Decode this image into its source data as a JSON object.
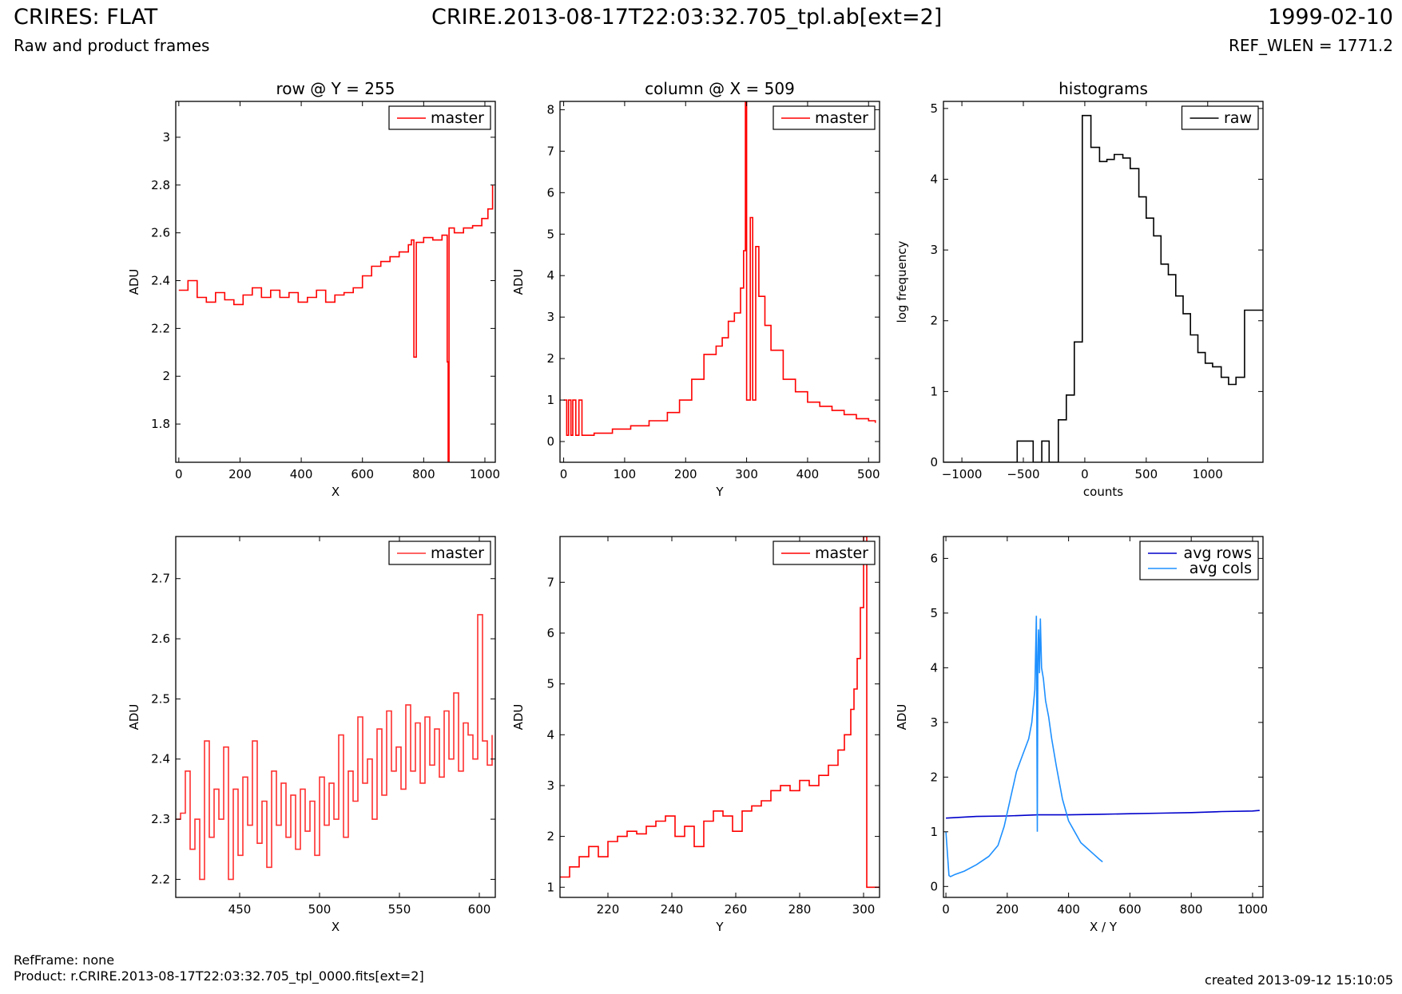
{
  "header": {
    "title": "CRIRES: FLAT",
    "subtitle": "Raw and product frames",
    "file": "CRIRE.2013-08-17T22:03:32.705_tpl.ab[ext=2]",
    "date": "1999-02-10",
    "ref_wlen": "REF_WLEN = 1771.2"
  },
  "footer": {
    "refframe": "RefFrame: none",
    "product": "Product: r.CRIRE.2013-08-17T22:03:32.705_tpl_0000.fits[ext=2]",
    "created": "created 2013-09-12 15:10:05"
  },
  "colors": {
    "master": "#ff0000",
    "raw": "#000000",
    "avg_rows": "#0000cc",
    "avg_cols": "#1e90ff"
  },
  "chart_data": [
    {
      "type": "line",
      "title": "row @ Y = 255",
      "xlabel": "X",
      "ylabel": "ADU",
      "xlim": [
        -10,
        1034
      ],
      "ylim": [
        1.64,
        3.15
      ],
      "xticks": [
        0,
        200,
        400,
        600,
        800,
        1000
      ],
      "yticks": [
        1.8,
        2.0,
        2.2,
        2.4,
        2.6,
        2.8,
        3.0
      ],
      "legend": "top-right",
      "series": [
        {
          "name": "master",
          "color": "#ff0000",
          "step": true,
          "x": [
            0,
            30,
            60,
            90,
            120,
            150,
            180,
            210,
            240,
            270,
            300,
            330,
            360,
            390,
            420,
            450,
            480,
            510,
            540,
            570,
            600,
            630,
            660,
            690,
            720,
            750,
            760,
            768,
            776,
            800,
            830,
            860,
            877,
            880,
            883,
            900,
            930,
            960,
            990,
            1010,
            1025
          ],
          "y": [
            2.36,
            2.4,
            2.33,
            2.31,
            2.35,
            2.32,
            2.3,
            2.34,
            2.37,
            2.33,
            2.36,
            2.33,
            2.35,
            2.31,
            2.33,
            2.36,
            2.31,
            2.34,
            2.35,
            2.37,
            2.42,
            2.46,
            2.48,
            2.5,
            2.52,
            2.55,
            2.57,
            2.08,
            2.56,
            2.58,
            2.57,
            2.59,
            2.06,
            1.64,
            2.62,
            2.6,
            2.62,
            2.63,
            2.66,
            2.7,
            2.8
          ]
        }
      ]
    },
    {
      "type": "line",
      "title": "column @ X = 509",
      "xlabel": "Y",
      "ylabel": "ADU",
      "xlim": [
        -6,
        518
      ],
      "ylim": [
        -0.5,
        8.2
      ],
      "xticks": [
        0,
        100,
        200,
        300,
        400,
        500
      ],
      "yticks": [
        0,
        1,
        2,
        3,
        4,
        5,
        6,
        7,
        8
      ],
      "legend": "top-right",
      "series": [
        {
          "name": "master",
          "color": "#ff0000",
          "step": true,
          "x": [
            0,
            5,
            8,
            12,
            15,
            20,
            25,
            30,
            50,
            80,
            110,
            140,
            170,
            190,
            210,
            230,
            250,
            260,
            270,
            280,
            290,
            295,
            298,
            300,
            302,
            306,
            310,
            315,
            320,
            330,
            340,
            360,
            380,
            400,
            420,
            440,
            460,
            480,
            500,
            511
          ],
          "y": [
            1.0,
            0.15,
            1.0,
            0.15,
            1.0,
            0.15,
            1.0,
            0.15,
            0.2,
            0.3,
            0.38,
            0.5,
            0.7,
            1.0,
            1.5,
            2.1,
            2.3,
            2.5,
            2.9,
            3.1,
            3.7,
            4.6,
            8.2,
            1.0,
            1.0,
            5.4,
            1.0,
            4.7,
            3.5,
            2.8,
            2.2,
            1.5,
            1.2,
            0.95,
            0.85,
            0.75,
            0.65,
            0.55,
            0.5,
            0.45
          ]
        }
      ]
    },
    {
      "type": "line",
      "title": "histograms",
      "xlabel": "counts",
      "ylabel": "log frequency",
      "xlim": [
        -1150,
        1450
      ],
      "ylim": [
        0,
        5.1
      ],
      "xticks": [
        -1000,
        -500,
        0,
        500,
        1000
      ],
      "yticks": [
        0,
        1,
        2,
        3,
        4,
        5
      ],
      "legend": "top-right",
      "series": [
        {
          "name": "raw",
          "color": "#000000",
          "step": true,
          "x": [
            -1150,
            -550,
            -420,
            -350,
            -290,
            -215,
            -150,
            -85,
            -20,
            50,
            120,
            180,
            240,
            310,
            370,
            440,
            500,
            560,
            620,
            680,
            740,
            800,
            860,
            920,
            980,
            1040,
            1110,
            1170,
            1230,
            1300,
            1360,
            1420,
            1450
          ],
          "y": [
            0,
            0.3,
            0,
            0.3,
            0,
            0.6,
            0.95,
            1.7,
            4.9,
            4.45,
            4.25,
            4.28,
            4.35,
            4.3,
            4.15,
            3.75,
            3.45,
            3.2,
            2.8,
            2.65,
            2.35,
            2.1,
            1.8,
            1.55,
            1.4,
            1.35,
            1.2,
            1.1,
            1.2,
            2.15,
            2.15,
            2.15,
            2.15
          ]
        }
      ]
    },
    {
      "type": "line",
      "title": "",
      "xlabel": "X",
      "ylabel": "ADU",
      "xlim": [
        410,
        610
      ],
      "ylim": [
        2.17,
        2.77
      ],
      "xticks": [
        450,
        500,
        550,
        600
      ],
      "yticks": [
        2.2,
        2.3,
        2.4,
        2.5,
        2.6,
        2.7
      ],
      "legend": "top-right",
      "series": [
        {
          "name": "master",
          "color": "#ff3030",
          "step": true,
          "x": [
            410,
            413,
            416,
            419,
            422,
            425,
            428,
            431,
            434,
            437,
            440,
            443,
            446,
            449,
            452,
            455,
            458,
            461,
            464,
            467,
            470,
            473,
            476,
            479,
            482,
            485,
            488,
            491,
            494,
            497,
            500,
            503,
            506,
            509,
            512,
            515,
            518,
            521,
            524,
            527,
            530,
            533,
            536,
            539,
            542,
            545,
            548,
            551,
            554,
            557,
            560,
            563,
            566,
            569,
            572,
            575,
            578,
            581,
            584,
            587,
            590,
            593,
            596,
            599,
            602,
            605,
            608
          ],
          "y": [
            2.3,
            2.31,
            2.38,
            2.25,
            2.3,
            2.2,
            2.43,
            2.27,
            2.35,
            2.3,
            2.42,
            2.2,
            2.35,
            2.24,
            2.37,
            2.29,
            2.43,
            2.26,
            2.33,
            2.22,
            2.38,
            2.29,
            2.36,
            2.27,
            2.34,
            2.25,
            2.35,
            2.28,
            2.33,
            2.24,
            2.37,
            2.29,
            2.36,
            2.3,
            2.44,
            2.27,
            2.38,
            2.33,
            2.47,
            2.36,
            2.4,
            2.3,
            2.45,
            2.34,
            2.48,
            2.38,
            2.42,
            2.35,
            2.49,
            2.38,
            2.46,
            2.36,
            2.47,
            2.39,
            2.45,
            2.37,
            2.48,
            2.4,
            2.51,
            2.38,
            2.46,
            2.44,
            2.4,
            2.64,
            2.43,
            2.39,
            2.44
          ]
        }
      ]
    },
    {
      "type": "line",
      "title": "",
      "xlabel": "Y",
      "ylabel": "ADU",
      "xlim": [
        205,
        305
      ],
      "ylim": [
        0.8,
        7.9
      ],
      "xticks": [
        220,
        240,
        260,
        280,
        300
      ],
      "yticks": [
        1,
        2,
        3,
        4,
        5,
        6,
        7
      ],
      "legend": "top-right",
      "series": [
        {
          "name": "master",
          "color": "#ff0000",
          "step": true,
          "x": [
            205,
            208,
            211,
            214,
            217,
            220,
            223,
            226,
            229,
            232,
            235,
            238,
            241,
            244,
            247,
            250,
            253,
            256,
            259,
            262,
            265,
            268,
            271,
            274,
            277,
            280,
            283,
            286,
            289,
            292,
            294,
            296,
            297,
            298,
            299,
            300,
            301,
            305
          ],
          "y": [
            1.2,
            1.4,
            1.6,
            1.8,
            1.6,
            1.9,
            2.0,
            2.1,
            2.05,
            2.2,
            2.3,
            2.4,
            2.0,
            2.2,
            1.8,
            2.3,
            2.5,
            2.4,
            2.1,
            2.5,
            2.6,
            2.7,
            2.9,
            3.0,
            2.9,
            3.1,
            3.0,
            3.2,
            3.4,
            3.7,
            4.0,
            4.5,
            4.9,
            5.5,
            6.5,
            7.9,
            1.0,
            1.0
          ]
        }
      ]
    },
    {
      "type": "line",
      "title": "",
      "xlabel": "X / Y",
      "ylabel": "ADU",
      "xlim": [
        -8,
        1034
      ],
      "ylim": [
        -0.2,
        6.4
      ],
      "xticks": [
        0,
        200,
        400,
        600,
        800,
        1000
      ],
      "yticks": [
        0,
        1,
        2,
        3,
        4,
        5,
        6
      ],
      "legend": "top-right",
      "series": [
        {
          "name": "avg rows",
          "color": "#0000cc",
          "step": false,
          "x": [
            0,
            100,
            200,
            300,
            400,
            500,
            600,
            700,
            800,
            900,
            1000,
            1023
          ],
          "y": [
            1.25,
            1.28,
            1.29,
            1.31,
            1.31,
            1.32,
            1.33,
            1.34,
            1.35,
            1.37,
            1.38,
            1.39
          ]
        },
        {
          "name": "avg cols",
          "color": "#1e90ff",
          "step": false,
          "x": [
            0,
            5,
            10,
            15,
            30,
            60,
            100,
            140,
            170,
            190,
            210,
            230,
            250,
            270,
            280,
            290,
            295,
            298,
            300,
            302,
            305,
            308,
            312,
            318,
            325,
            335,
            345,
            360,
            380,
            400,
            420,
            440,
            460,
            480,
            500,
            511
          ],
          "y": [
            1.0,
            0.6,
            0.2,
            0.18,
            0.22,
            0.28,
            0.4,
            0.55,
            0.75,
            1.1,
            1.6,
            2.1,
            2.4,
            2.7,
            3.0,
            3.6,
            4.95,
            1.0,
            4.2,
            4.7,
            3.9,
            4.9,
            4.0,
            3.8,
            3.4,
            3.1,
            2.7,
            2.2,
            1.6,
            1.2,
            1.0,
            0.8,
            0.7,
            0.6,
            0.5,
            0.45
          ]
        }
      ]
    }
  ]
}
